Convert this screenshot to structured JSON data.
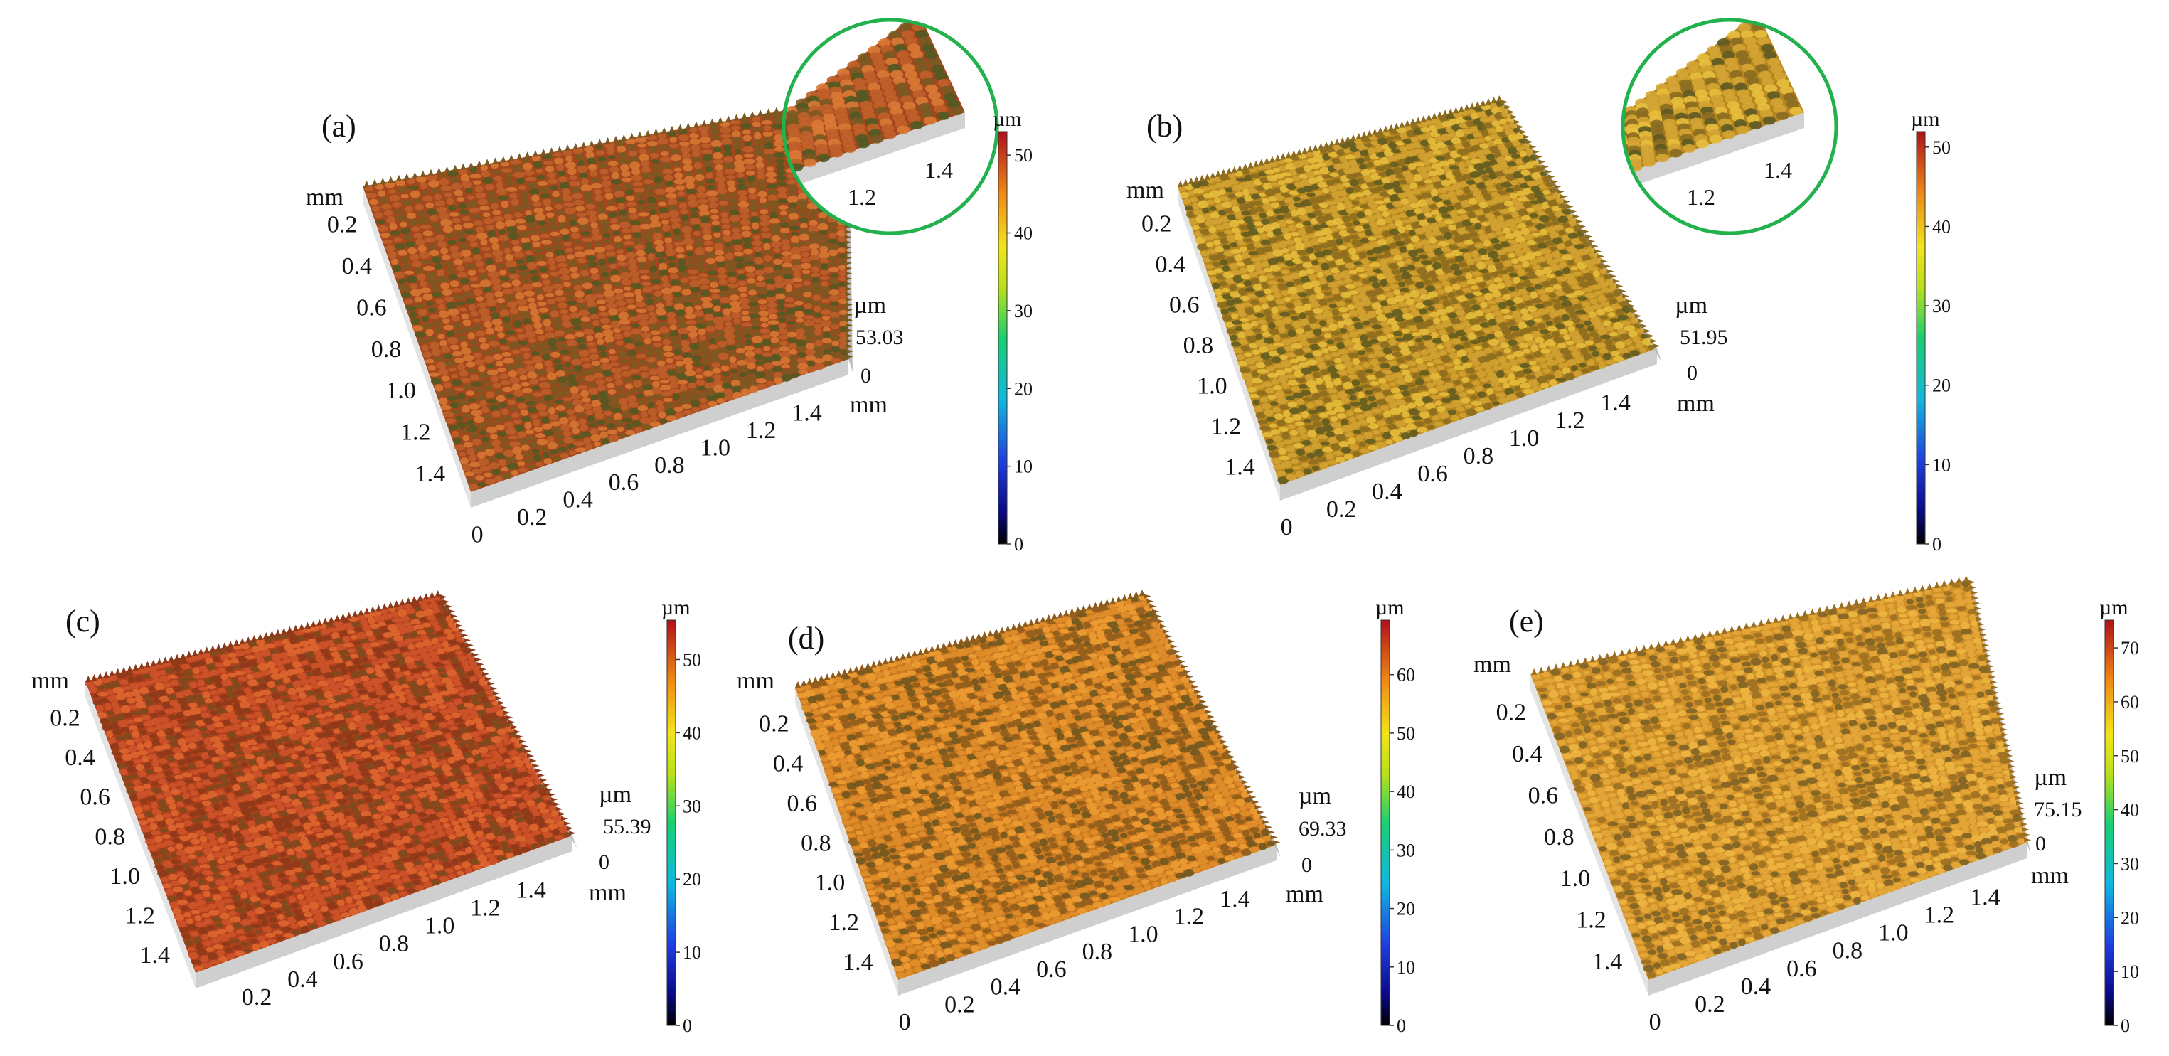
{
  "figure": {
    "panels": [
      {
        "id": "a",
        "label": "(a)",
        "mm_unit": "mm",
        "y_ticks": [
          "0.2",
          "0.4",
          "0.6",
          "0.8",
          "1.0",
          "1.2",
          "1.4"
        ],
        "x_ticks": [
          "0",
          "0.2",
          "0.4",
          "0.6",
          "0.8",
          "1.0",
          "1.2",
          "1.4"
        ],
        "z_unit": "µm",
        "z_max": "53.03",
        "z_zero": "0",
        "surface_colors": [
          "#a2471e",
          "#c0612a",
          "#d97a35",
          "#7a5a22",
          "#4f5a22"
        ],
        "inset": {
          "ticks": [
            "1.2",
            "1.4"
          ]
        },
        "colorbar": {
          "unit": "µm",
          "min": 0,
          "max": 53.03,
          "ticks": [
            "0",
            "10",
            "20",
            "30",
            "40",
            "50"
          ]
        }
      },
      {
        "id": "b",
        "label": "(b)",
        "mm_unit": "mm",
        "y_ticks": [
          "0.2",
          "0.4",
          "0.6",
          "0.8",
          "1.0",
          "1.2",
          "1.4"
        ],
        "x_ticks": [
          "0",
          "0.2",
          "0.4",
          "0.6",
          "0.8",
          "1.0",
          "1.2",
          "1.4"
        ],
        "z_unit": "µm",
        "z_max": "51.95",
        "z_zero": "0",
        "surface_colors": [
          "#b7861e",
          "#d4a534",
          "#e8bf3e",
          "#8a6b20",
          "#5d5a22"
        ],
        "inset": {
          "ticks": [
            "1.2",
            "1.4"
          ]
        },
        "colorbar": {
          "unit": "µm",
          "min": 0,
          "max": 51.95,
          "ticks": [
            "0",
            "10",
            "20",
            "30",
            "40",
            "50"
          ]
        }
      },
      {
        "id": "c",
        "label": "(c)",
        "mm_unit": "mm",
        "y_ticks": [
          "0.2",
          "0.4",
          "0.6",
          "0.8",
          "1.0",
          "1.2",
          "1.4"
        ],
        "x_ticks": [
          "0.2",
          "0.4",
          "0.6",
          "0.8",
          "1.0",
          "1.2",
          "1.4"
        ],
        "z_unit": "µm",
        "z_max": "55.39",
        "z_zero": "0",
        "surface_colors": [
          "#b2401c",
          "#cf552a",
          "#e06a30",
          "#8a3a1a",
          "#7a4a1c"
        ],
        "inset": null,
        "colorbar": {
          "unit": "µm",
          "min": 0,
          "max": 55.39,
          "ticks": [
            "0",
            "10",
            "20",
            "30",
            "40",
            "50"
          ]
        }
      },
      {
        "id": "d",
        "label": "(d)",
        "mm_unit": "mm",
        "y_ticks": [
          "0.2",
          "0.4",
          "0.6",
          "0.8",
          "1.0",
          "1.2",
          "1.4"
        ],
        "x_ticks": [
          "0",
          "0.2",
          "0.4",
          "0.6",
          "0.8",
          "1.0",
          "1.2",
          "1.4"
        ],
        "z_unit": "µm",
        "z_max": "69.33",
        "z_zero": "0",
        "surface_colors": [
          "#c9771f",
          "#e08f2c",
          "#ee9f32",
          "#8c5a1c",
          "#6b5520"
        ],
        "inset": null,
        "colorbar": {
          "unit": "µm",
          "min": 0,
          "max": 69.33,
          "ticks": [
            "0",
            "10",
            "20",
            "30",
            "40",
            "50",
            "60"
          ]
        }
      },
      {
        "id": "e",
        "label": "(e)",
        "mm_unit": "mm",
        "y_ticks": [
          "0.2",
          "0.4",
          "0.6",
          "0.8",
          "1.0",
          "1.2",
          "1.4"
        ],
        "x_ticks": [
          "0",
          "0.2",
          "0.4",
          "0.6",
          "0.8",
          "1.0",
          "1.2",
          "1.4"
        ],
        "z_unit": "µm",
        "z_max": "75.15",
        "z_zero": "0",
        "surface_colors": [
          "#d09028",
          "#e6a93a",
          "#f0b844",
          "#9a6e22",
          "#7a6024"
        ],
        "inset": null,
        "colorbar": {
          "unit": "µm",
          "min": 0,
          "max": 75.15,
          "ticks": [
            "0",
            "10",
            "20",
            "30",
            "40",
            "50",
            "60",
            "70"
          ]
        }
      }
    ]
  }
}
